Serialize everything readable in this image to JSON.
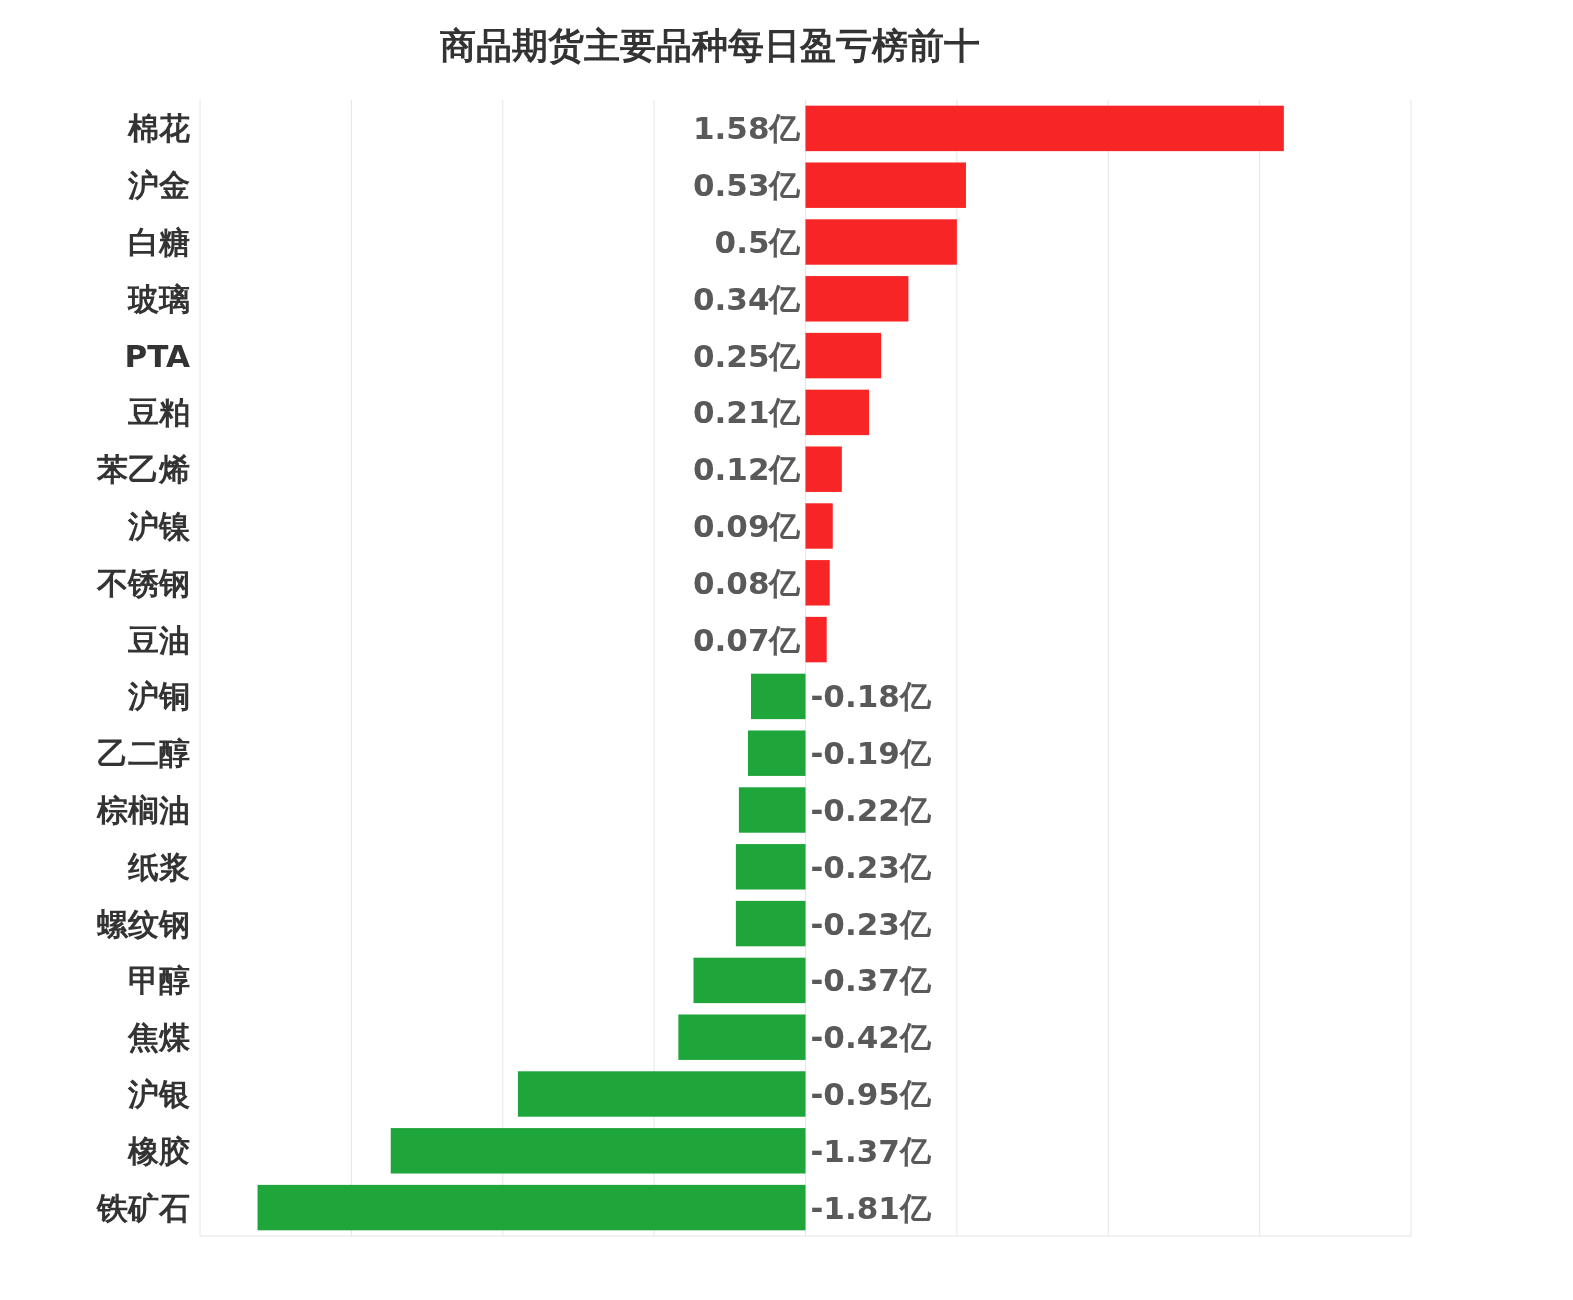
{
  "chart_data": {
    "type": "bar",
    "orientation": "horizontal",
    "title": "商品期货主要品种每日盈亏榜前十",
    "categories": [
      "棉花",
      "沪金",
      "白糖",
      "玻璃",
      "PTA",
      "豆粕",
      "苯乙烯",
      "沪镍",
      "不锈钢",
      "豆油",
      "沪铜",
      "乙二醇",
      "棕榈油",
      "纸浆",
      "螺纹钢",
      "甲醇",
      "焦煤",
      "沪银",
      "橡胶",
      "铁矿石"
    ],
    "values": [
      1.58,
      0.53,
      0.5,
      0.34,
      0.25,
      0.21,
      0.12,
      0.09,
      0.08,
      0.07,
      -0.18,
      -0.19,
      -0.22,
      -0.23,
      -0.23,
      -0.37,
      -0.42,
      -0.95,
      -1.37,
      -1.81
    ],
    "value_labels": [
      "1.58亿",
      "0.53亿",
      "0.5亿",
      "0.34亿",
      "0.25亿",
      "0.21亿",
      "0.12亿",
      "0.09亿",
      "0.08亿",
      "0.07亿",
      "-0.18亿",
      "-0.19亿",
      "-0.22亿",
      "-0.23亿",
      "-0.23亿",
      "-0.37亿",
      "-0.42亿",
      "-0.95亿",
      "-1.37亿",
      "-1.81亿"
    ],
    "colors": [
      "#f72526",
      "#f72526",
      "#f72526",
      "#f72526",
      "#f72526",
      "#f72526",
      "#f72526",
      "#f72526",
      "#f72526",
      "#f72526",
      "#1fa63b",
      "#1fa63b",
      "#1fa63b",
      "#1fa63b",
      "#1fa63b",
      "#1fa63b",
      "#1fa63b",
      "#1fa63b",
      "#1fa63b",
      "#1fa63b"
    ],
    "xlim": [
      -2,
      2
    ],
    "xticks": [
      {
        "value": -2,
        "label": null
      },
      {
        "value": -1.5,
        "label": null
      },
      {
        "value": -1,
        "label": null
      },
      {
        "value": -0.5,
        "label": null
      },
      {
        "value": 0,
        "label": null
      },
      {
        "value": 0.5,
        "label": null
      },
      {
        "value": 1,
        "label": null
      },
      {
        "value": 1.5,
        "label": null
      },
      {
        "value": 2,
        "label": null
      }
    ],
    "grid": "x"
  }
}
